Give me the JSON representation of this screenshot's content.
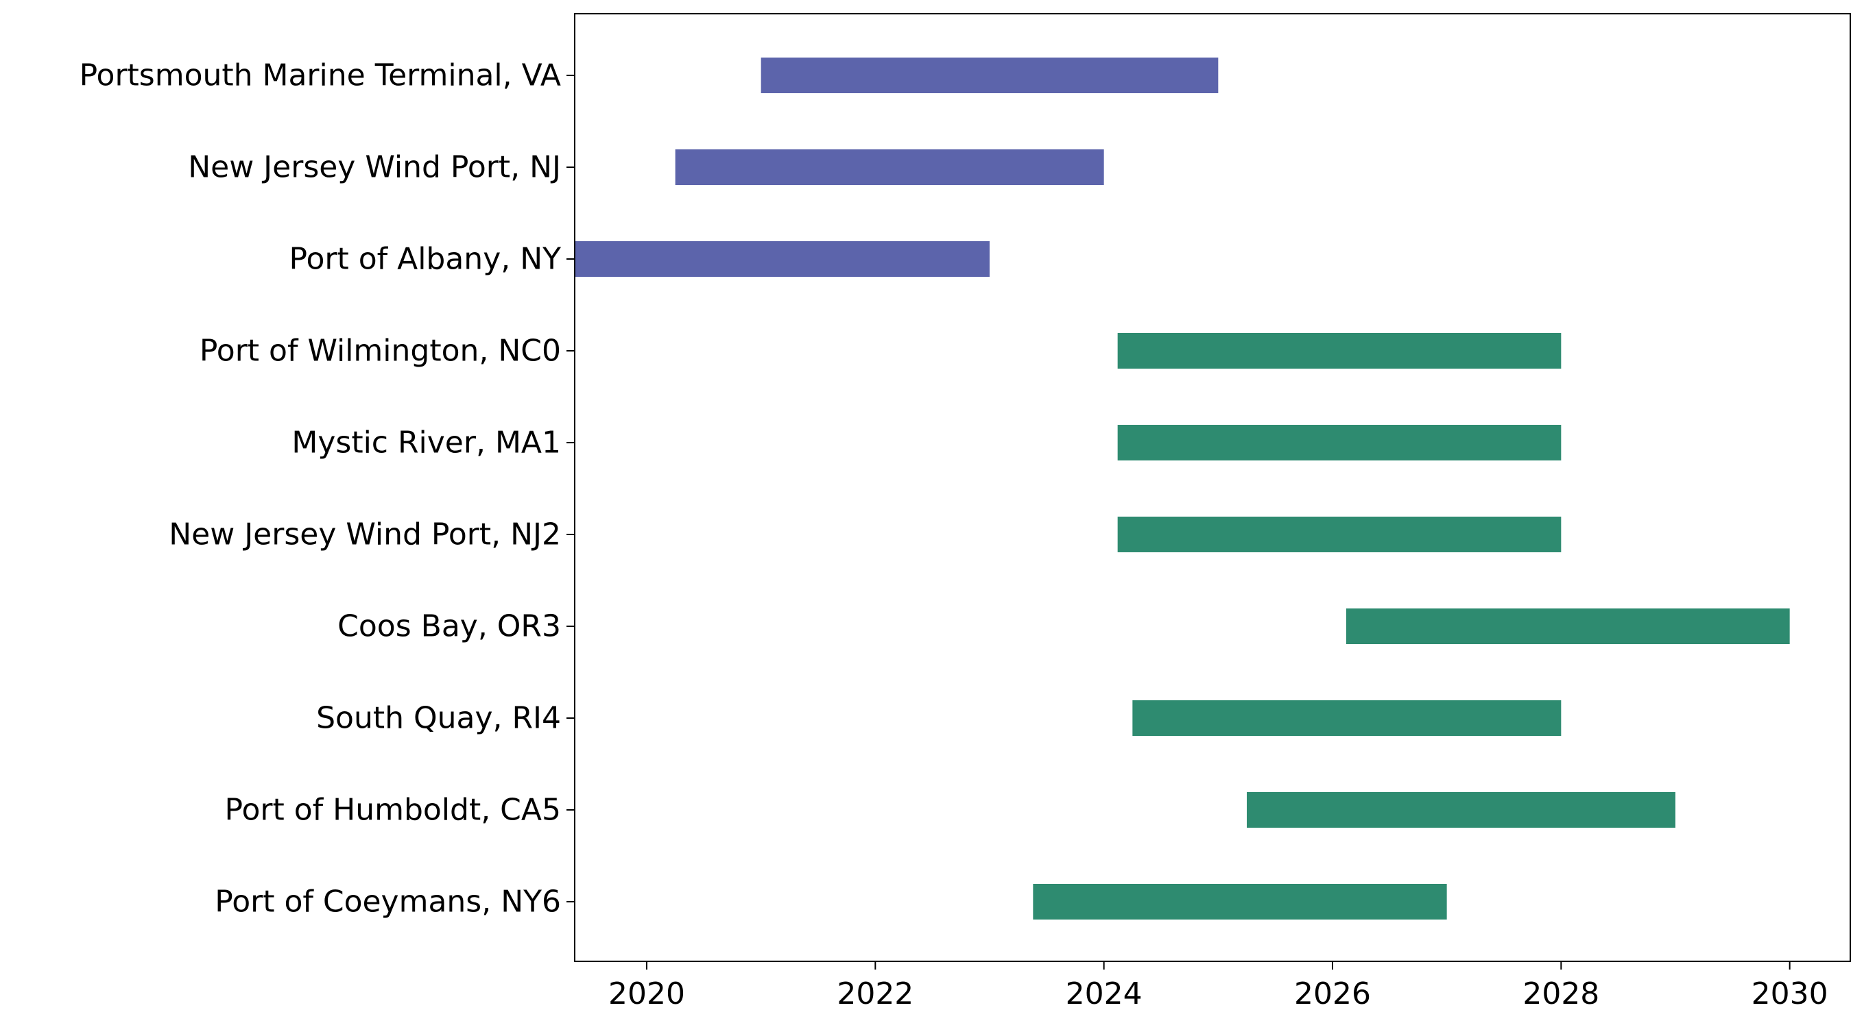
{
  "chart_data": {
    "type": "bar",
    "orientation": "horizontal-gantt",
    "title": "",
    "xlabel": "",
    "ylabel": "",
    "xlim": [
      2019.37,
      2030.53
    ],
    "x_ticks": [
      2020,
      2022,
      2024,
      2026,
      2028,
      2030
    ],
    "grid": false,
    "legend": "none",
    "colors": {
      "group_a": "#5c64ab",
      "group_b": "#2e8b70"
    },
    "tasks": [
      {
        "label": "Portsmouth Marine Terminal, VA",
        "start": 2021.0,
        "end": 2025.0,
        "group": "group_a"
      },
      {
        "label": "New Jersey Wind Port, NJ",
        "start": 2020.25,
        "end": 2024.0,
        "group": "group_a"
      },
      {
        "label": "Port of Albany, NY",
        "start": 2019.37,
        "end": 2023.0,
        "group": "group_a"
      },
      {
        "label": "Port of Wilmington, NC0",
        "start": 2024.12,
        "end": 2028.0,
        "group": "group_b"
      },
      {
        "label": "Mystic River, MA1",
        "start": 2024.12,
        "end": 2028.0,
        "group": "group_b"
      },
      {
        "label": "New Jersey Wind Port, NJ2",
        "start": 2024.12,
        "end": 2028.0,
        "group": "group_b"
      },
      {
        "label": "Coos Bay, OR3",
        "start": 2026.12,
        "end": 2030.0,
        "group": "group_b"
      },
      {
        "label": "South Quay, RI4",
        "start": 2024.25,
        "end": 2028.0,
        "group": "group_b"
      },
      {
        "label": "Port of Humboldt, CA5",
        "start": 2025.25,
        "end": 2029.0,
        "group": "group_b"
      },
      {
        "label": "Port of Coeymans, NY6",
        "start": 2023.38,
        "end": 2027.0,
        "group": "group_b"
      }
    ]
  }
}
